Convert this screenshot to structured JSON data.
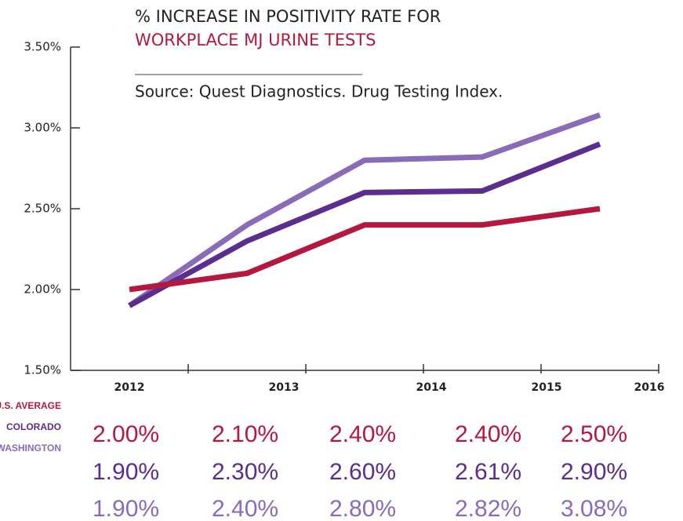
{
  "chart_data": {
    "type": "line",
    "title": "% INCREASE IN POSITIVITY RATE FOR",
    "subtitle": "WORKPLACE MJ URINE TESTS",
    "source": "Source: Quest Diagnostics. Drug Testing Index.",
    "categories": [
      "2012",
      "2013",
      "2014",
      "2015",
      "2016"
    ],
    "series": [
      {
        "name": "U.S. AVERAGE",
        "color": "#b5183f",
        "values": [
          2.0,
          2.1,
          2.4,
          2.4,
          2.5
        ],
        "value_labels": [
          "2.00%",
          "2.10%",
          "2.40%",
          "2.40%",
          "2.50%"
        ]
      },
      {
        "name": "COLORADO",
        "color": "#5b2d8e",
        "values": [
          1.9,
          2.3,
          2.6,
          2.61,
          2.9
        ],
        "value_labels": [
          "1.90%",
          "2.30%",
          "2.60%",
          "2.61%",
          "2.90%"
        ]
      },
      {
        "name": "WASHINGTON",
        "color": "#8a6bb8",
        "values": [
          1.9,
          2.4,
          2.8,
          2.82,
          3.08
        ],
        "value_labels": [
          "1.90%",
          "2.40%",
          "2.80%",
          "2.82%",
          "3.08%"
        ]
      }
    ],
    "ylim": [
      1.5,
      3.5
    ],
    "yticks": [
      {
        "value": 1.5,
        "label": "1.50%"
      },
      {
        "value": 2.0,
        "label": "2.00%"
      },
      {
        "value": 2.5,
        "label": "2.50%"
      },
      {
        "value": 3.0,
        "label": "3.00%"
      },
      {
        "value": 3.5,
        "label": "3.50%"
      }
    ]
  }
}
